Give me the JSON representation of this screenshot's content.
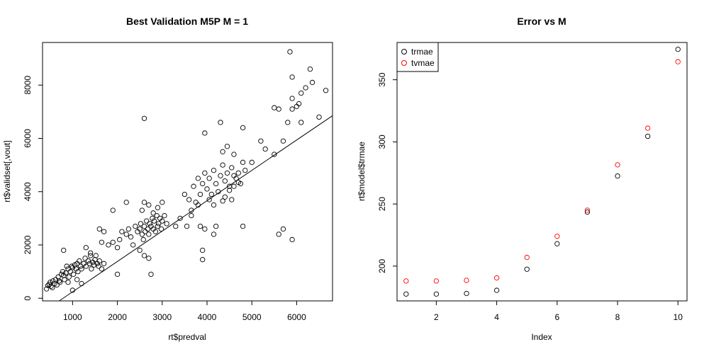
{
  "chart_data": [
    {
      "type": "scatter",
      "title": "Best Validation M5P M =  1",
      "xlabel": "rt$predval",
      "ylabel": "rt$validset[,vout]",
      "xlim": [
        330,
        6800
      ],
      "ylim": [
        -100,
        9600
      ],
      "xticks": [
        1000,
        2000,
        3000,
        4000,
        5000,
        6000
      ],
      "yticks": [
        0,
        2000,
        4000,
        6000,
        8000
      ],
      "xtick_labels": [
        "1000",
        "2000",
        "3000",
        "4000",
        "5000",
        "6000"
      ],
      "ytick_labels": [
        "0",
        "2000",
        "4000",
        "6000",
        "8000"
      ],
      "regression_line": {
        "intercept": -900,
        "slope": 1.14
      },
      "points": [
        [
          420,
          350
        ],
        [
          450,
          480
        ],
        [
          480,
          520
        ],
        [
          500,
          600
        ],
        [
          520,
          450
        ],
        [
          550,
          400
        ],
        [
          560,
          650
        ],
        [
          600,
          550
        ],
        [
          620,
          700
        ],
        [
          650,
          500
        ],
        [
          680,
          800
        ],
        [
          700,
          650
        ],
        [
          720,
          600
        ],
        [
          750,
          900
        ],
        [
          780,
          1000
        ],
        [
          800,
          850
        ],
        [
          820,
          700
        ],
        [
          850,
          950
        ],
        [
          870,
          1200
        ],
        [
          900,
          1100
        ],
        [
          920,
          800
        ],
        [
          950,
          1000
        ],
        [
          980,
          1200
        ],
        [
          1000,
          1150
        ],
        [
          1020,
          900
        ],
        [
          1050,
          1250
        ],
        [
          1080,
          1100
        ],
        [
          1100,
          1300
        ],
        [
          1120,
          1000
        ],
        [
          1150,
          1400
        ],
        [
          1180,
          1200
        ],
        [
          1200,
          1100
        ],
        [
          1250,
          1300
        ],
        [
          1280,
          1500
        ],
        [
          1300,
          1200
        ],
        [
          1350,
          1400
        ],
        [
          1380,
          1300
        ],
        [
          1400,
          1600
        ],
        [
          1420,
          1100
        ],
        [
          1450,
          1350
        ],
        [
          1480,
          1250
        ],
        [
          1500,
          1450
        ],
        [
          1520,
          1600
        ],
        [
          1550,
          1300
        ],
        [
          1580,
          1200
        ],
        [
          1600,
          1400
        ],
        [
          1650,
          1100
        ],
        [
          1700,
          1300
        ],
        [
          1000,
          300
        ],
        [
          900,
          600
        ],
        [
          800,
          1800
        ],
        [
          1100,
          700
        ],
        [
          1200,
          550
        ],
        [
          1300,
          1900
        ],
        [
          1400,
          1700
        ],
        [
          1600,
          2600
        ],
        [
          1700,
          2500
        ],
        [
          1650,
          2100
        ],
        [
          1800,
          2000
        ],
        [
          1900,
          2100
        ],
        [
          2000,
          1900
        ],
        [
          2050,
          2200
        ],
        [
          2100,
          2500
        ],
        [
          2200,
          2400
        ],
        [
          2250,
          2600
        ],
        [
          2300,
          2300
        ],
        [
          2350,
          2000
        ],
        [
          2400,
          2700
        ],
        [
          2450,
          2500
        ],
        [
          2500,
          2600
        ],
        [
          2520,
          2800
        ],
        [
          2550,
          2400
        ],
        [
          2580,
          2200
        ],
        [
          2600,
          2700
        ],
        [
          2620,
          2500
        ],
        [
          2650,
          2900
        ],
        [
          2680,
          2600
        ],
        [
          2700,
          2400
        ],
        [
          2720,
          2800
        ],
        [
          2750,
          2700
        ],
        [
          2780,
          3000
        ],
        [
          2800,
          2600
        ],
        [
          2820,
          2900
        ],
        [
          2850,
          2500
        ],
        [
          2880,
          3100
        ],
        [
          2900,
          2700
        ],
        [
          2920,
          2800
        ],
        [
          2950,
          3000
        ],
        [
          2980,
          2600
        ],
        [
          3000,
          2900
        ],
        [
          3050,
          3100
        ],
        [
          3100,
          2800
        ],
        [
          2550,
          3300
        ],
        [
          2600,
          3600
        ],
        [
          2700,
          3500
        ],
        [
          2800,
          3200
        ],
        [
          2900,
          3400
        ],
        [
          3000,
          3600
        ],
        [
          2500,
          1800
        ],
        [
          2600,
          1600
        ],
        [
          2700,
          1500
        ],
        [
          2750,
          900
        ],
        [
          2000,
          900
        ],
        [
          2200,
          3600
        ],
        [
          1900,
          3300
        ],
        [
          2600,
          6750
        ],
        [
          3300,
          2700
        ],
        [
          3400,
          3000
        ],
        [
          3500,
          3900
        ],
        [
          3600,
          3700
        ],
        [
          3700,
          4200
        ],
        [
          3800,
          4500
        ],
        [
          3850,
          3900
        ],
        [
          3900,
          4300
        ],
        [
          3950,
          4700
        ],
        [
          4000,
          4100
        ],
        [
          4050,
          4500
        ],
        [
          4100,
          3900
        ],
        [
          4150,
          4800
        ],
        [
          4200,
          4300
        ],
        [
          4250,
          4000
        ],
        [
          4300,
          4600
        ],
        [
          4350,
          5000
        ],
        [
          4400,
          4400
        ],
        [
          4450,
          4700
        ],
        [
          4500,
          4200
        ],
        [
          4550,
          4900
        ],
        [
          4600,
          4600
        ],
        [
          4650,
          4500
        ],
        [
          4700,
          4700
        ],
        [
          4750,
          4300
        ],
        [
          4800,
          5100
        ],
        [
          4850,
          4800
        ],
        [
          4150,
          3500
        ],
        [
          4050,
          3700
        ],
        [
          4200,
          2700
        ],
        [
          4150,
          2400
        ],
        [
          3900,
          1800
        ],
        [
          3900,
          1450
        ],
        [
          3850,
          2700
        ],
        [
          3950,
          2600
        ],
        [
          3950,
          6200
        ],
        [
          4300,
          6600
        ],
        [
          4800,
          6400
        ],
        [
          4600,
          5400
        ],
        [
          4450,
          5700
        ],
        [
          4350,
          5500
        ],
        [
          5000,
          5100
        ],
        [
          5200,
          5900
        ],
        [
          5300,
          5600
        ],
        [
          5500,
          5400
        ],
        [
          5500,
          7150
        ],
        [
          5600,
          7100
        ],
        [
          5700,
          5900
        ],
        [
          5800,
          6600
        ],
        [
          5900,
          7100
        ],
        [
          6000,
          7200
        ],
        [
          6050,
          7300
        ],
        [
          6100,
          7700
        ],
        [
          6200,
          7900
        ],
        [
          5900,
          7500
        ],
        [
          5900,
          8300
        ],
        [
          6100,
          6600
        ],
        [
          6300,
          8600
        ],
        [
          6350,
          8100
        ],
        [
          6500,
          6800
        ],
        [
          6650,
          7800
        ],
        [
          5850,
          9250
        ],
        [
          4800,
          2700
        ],
        [
          5600,
          2400
        ],
        [
          5700,
          2600
        ],
        [
          5900,
          2200
        ],
        [
          4600,
          4200
        ],
        [
          4500,
          4050
        ],
        [
          4700,
          4350
        ],
        [
          4400,
          3800
        ],
        [
          4350,
          3650
        ],
        [
          4550,
          3700
        ],
        [
          3800,
          3500
        ],
        [
          3650,
          3300
        ],
        [
          3750,
          3600
        ],
        [
          3550,
          2700
        ],
        [
          3650,
          3100
        ]
      ]
    },
    {
      "type": "scatter",
      "title": "Error vs M",
      "xlabel": "Index",
      "ylabel": "rt$model$trmae",
      "xlim": [
        0.7,
        10.3
      ],
      "ylim": [
        172,
        380
      ],
      "xticks": [
        2,
        4,
        6,
        8,
        10
      ],
      "yticks": [
        200,
        250,
        300,
        350
      ],
      "xtick_labels": [
        "2",
        "4",
        "6",
        "8",
        "10"
      ],
      "ytick_labels": [
        "200",
        "250",
        "300",
        "350"
      ],
      "x": [
        1,
        2,
        3,
        4,
        5,
        6,
        7,
        8,
        9,
        10
      ],
      "series": [
        {
          "name": "trmae",
          "color": "#000000",
          "values": [
            177.5,
            177.5,
            178,
            180.5,
            197.5,
            218,
            243.5,
            272.5,
            304.5,
            374.5
          ]
        },
        {
          "name": "tvmae",
          "color": "#ff0000",
          "values": [
            188,
            188,
            188.5,
            190.5,
            207,
            224,
            245,
            281.5,
            311,
            364.5
          ]
        }
      ],
      "legend_position": "top-left"
    }
  ]
}
